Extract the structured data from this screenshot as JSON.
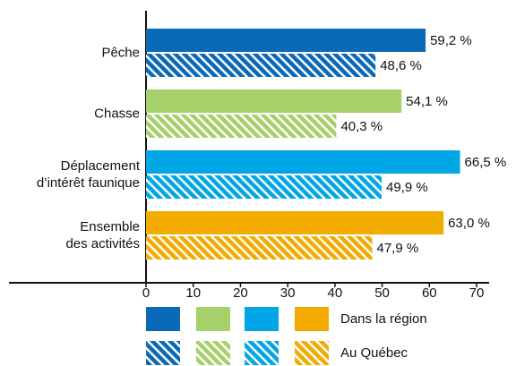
{
  "chart_data": {
    "type": "bar",
    "orientation": "horizontal",
    "categories": [
      "Pêche",
      "Chasse",
      "Déplacement\nd’intérêt faunique",
      "Ensemble\ndes activités"
    ],
    "colors": [
      "#0a6ab8",
      "#a6d06a",
      "#00a6e6",
      "#f2ac00"
    ],
    "series": [
      {
        "name": "Dans la région",
        "hatched": false,
        "values": [
          59.2,
          54.1,
          66.5,
          63.0
        ],
        "value_labels": [
          "59,2 %",
          "54,1 %",
          "66,5 %",
          "63,0 %"
        ]
      },
      {
        "name": "Au Québec",
        "hatched": true,
        "values": [
          48.6,
          40.3,
          49.9,
          47.9
        ],
        "value_labels": [
          "48,6 %",
          "40,3 %",
          "49,9 %",
          "47,9 %"
        ]
      }
    ],
    "xlim": [
      0,
      70
    ],
    "xticks": [
      0,
      10,
      20,
      30,
      40,
      50,
      60,
      70
    ]
  }
}
